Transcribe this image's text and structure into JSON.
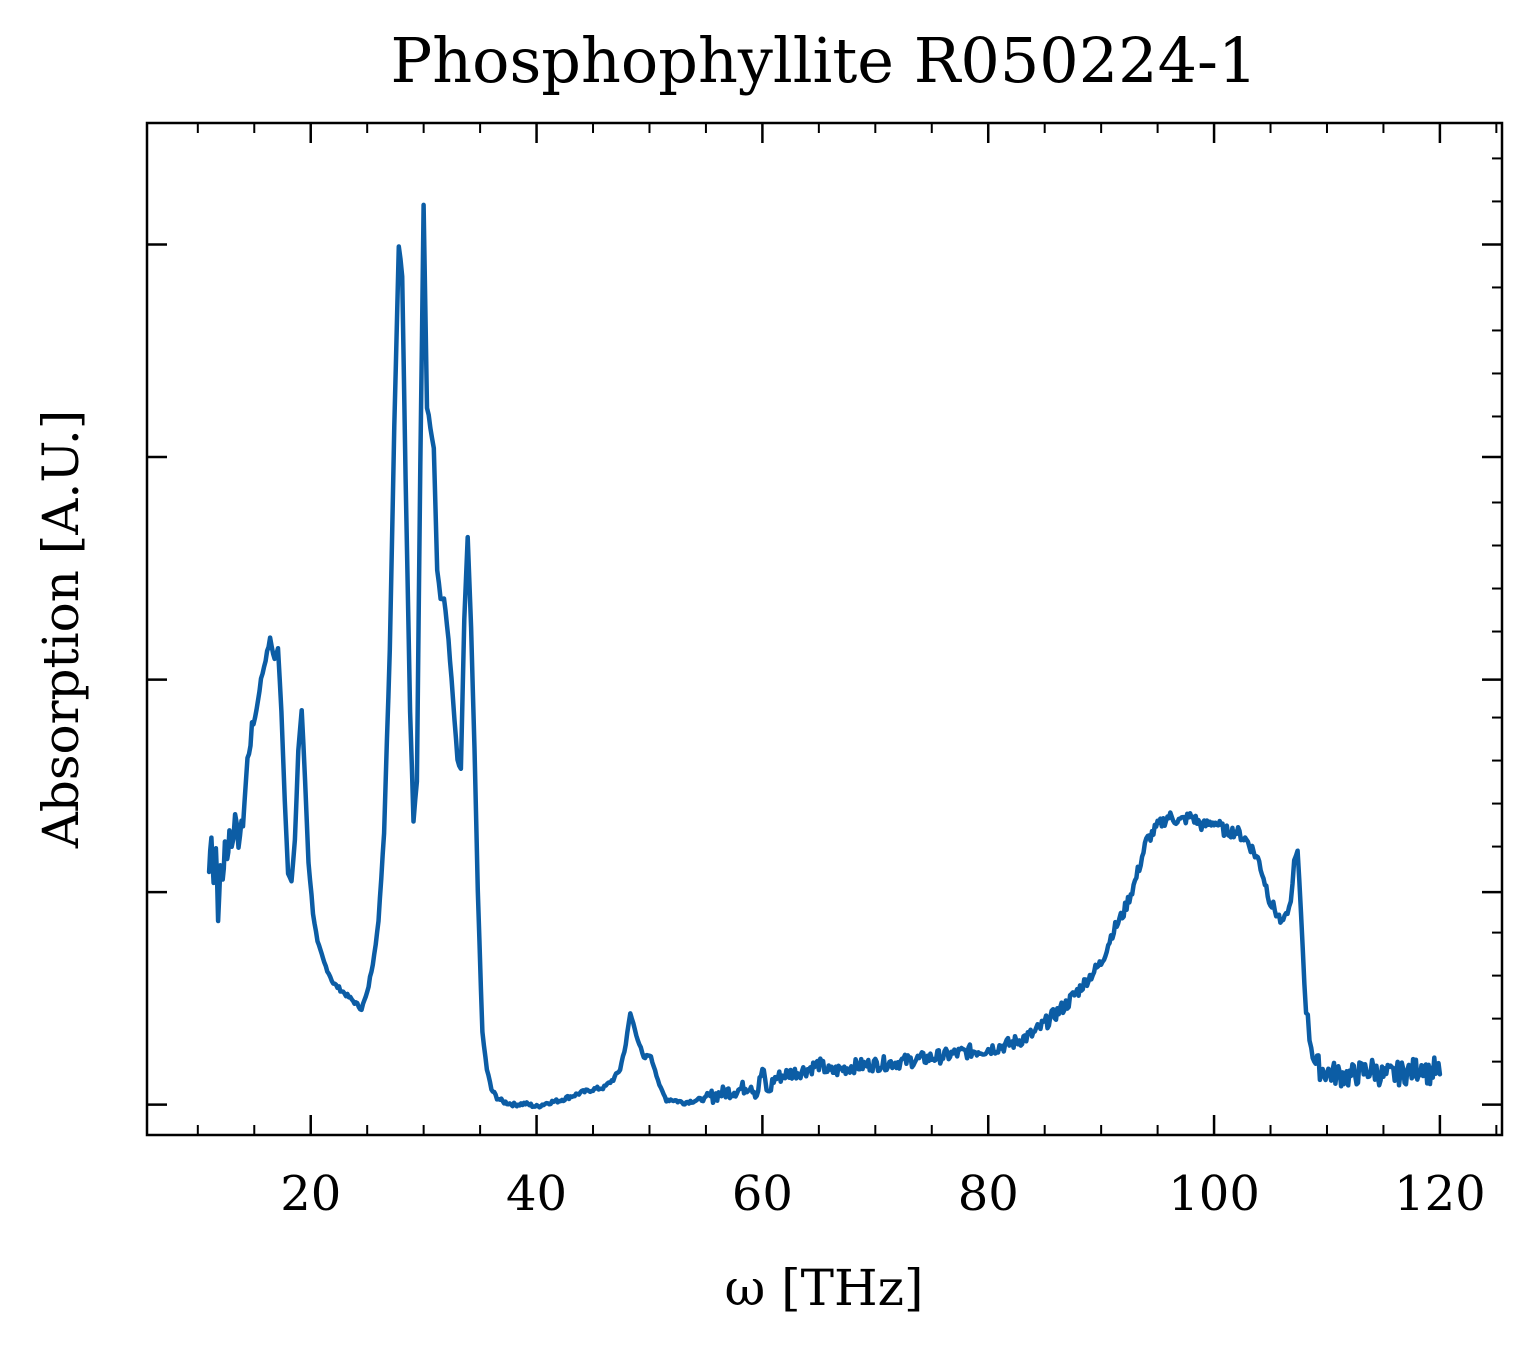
{
  "chart_data": {
    "type": "line",
    "title": "Phosphophyllite R050224-1",
    "xlabel": "ω [THz]",
    "ylabel": "Absorption [A.U.]",
    "xlim": [
      5.5,
      125.5
    ],
    "ylim": [
      0,
      1
    ],
    "xticks": [
      20,
      40,
      60,
      80,
      100,
      120
    ],
    "xtick_labels": [
      "20",
      "40",
      "60",
      "80",
      "100",
      "120"
    ],
    "yticks_shown_unlabeled": [
      0.03,
      0.24,
      0.45,
      0.67,
      0.88
    ],
    "grid": false,
    "line_color": "#0c5da5",
    "series": [
      {
        "x": [
          11.0,
          11.2,
          11.4,
          11.6,
          11.8,
          12.0,
          12.2,
          12.4,
          12.6,
          12.8,
          13.0,
          13.3,
          13.6,
          14.0,
          14.4,
          14.8,
          15.2,
          15.6,
          16.0,
          16.4,
          16.8,
          17.1,
          17.4,
          17.7,
          18.0,
          18.3,
          18.6,
          18.9,
          19.2,
          19.5,
          19.8,
          20.2,
          20.6,
          21.2,
          22.0,
          23.0,
          24.0,
          24.5,
          25.0,
          25.5,
          26.0,
          26.5,
          27.0,
          27.4,
          27.8,
          28.1,
          28.4,
          28.8,
          29.1,
          29.4,
          29.7,
          30.0,
          30.3,
          30.6,
          30.9,
          31.2,
          31.5,
          31.8,
          32.2,
          32.6,
          33.0,
          33.3,
          33.6,
          33.9,
          34.2,
          34.5,
          34.8,
          35.2,
          35.6,
          36.0,
          36.5,
          37.0,
          38.0,
          39.0,
          40.0,
          41.0,
          42.0,
          43.0,
          44.0,
          45.0,
          46.0,
          46.8,
          47.4,
          47.9,
          48.3,
          48.7,
          49.1,
          49.5,
          50.0,
          50.5,
          51.0,
          51.5,
          52.0,
          53.0,
          54.0,
          55.0,
          56.0,
          57.0,
          58.0,
          59.0,
          59.5,
          60.0,
          60.5,
          61.0,
          62.0,
          63.0,
          64.0,
          65.0,
          66.0,
          67.0,
          68.0,
          70.0,
          72.0,
          74.0,
          76.0,
          78.0,
          80.0,
          82.0,
          84.0,
          85.5,
          87.0,
          88.5,
          90.0,
          91.0,
          92.0,
          93.0,
          94.0,
          95.0,
          96.0,
          97.0,
          98.0,
          99.0,
          100.0,
          101.0,
          102.0,
          103.0,
          104.0,
          105.0,
          105.5,
          106.0,
          106.5,
          106.8,
          107.1,
          107.4,
          107.7,
          108.0,
          108.3,
          108.6,
          109.0,
          109.5,
          110.0,
          111.0,
          112.0,
          113.0,
          114.0,
          115.0,
          116.0,
          117.0,
          118.0,
          118.5,
          119.0,
          119.5,
          120.0
        ],
        "y": [
          0.26,
          0.3,
          0.25,
          0.29,
          0.21,
          0.27,
          0.25,
          0.29,
          0.27,
          0.3,
          0.29,
          0.31,
          0.29,
          0.31,
          0.37,
          0.4,
          0.42,
          0.45,
          0.47,
          0.49,
          0.47,
          0.48,
          0.42,
          0.33,
          0.26,
          0.25,
          0.29,
          0.38,
          0.42,
          0.35,
          0.27,
          0.22,
          0.19,
          0.17,
          0.15,
          0.14,
          0.13,
          0.125,
          0.14,
          0.17,
          0.21,
          0.3,
          0.48,
          0.7,
          0.88,
          0.85,
          0.65,
          0.42,
          0.31,
          0.35,
          0.66,
          0.92,
          0.72,
          0.7,
          0.68,
          0.56,
          0.53,
          0.53,
          0.49,
          0.43,
          0.37,
          0.36,
          0.51,
          0.59,
          0.5,
          0.38,
          0.24,
          0.1,
          0.065,
          0.045,
          0.037,
          0.033,
          0.03,
          0.031,
          0.028,
          0.032,
          0.034,
          0.038,
          0.042,
          0.045,
          0.047,
          0.055,
          0.065,
          0.09,
          0.12,
          0.105,
          0.09,
          0.075,
          0.08,
          0.065,
          0.045,
          0.035,
          0.035,
          0.032,
          0.034,
          0.036,
          0.04,
          0.043,
          0.045,
          0.05,
          0.04,
          0.065,
          0.04,
          0.055,
          0.06,
          0.062,
          0.065,
          0.07,
          0.062,
          0.065,
          0.068,
          0.07,
          0.072,
          0.075,
          0.078,
          0.082,
          0.085,
          0.09,
          0.1,
          0.115,
          0.13,
          0.15,
          0.17,
          0.2,
          0.22,
          0.25,
          0.29,
          0.305,
          0.315,
          0.31,
          0.315,
          0.305,
          0.31,
          0.3,
          0.3,
          0.29,
          0.27,
          0.23,
          0.22,
          0.21,
          0.22,
          0.23,
          0.27,
          0.28,
          0.22,
          0.15,
          0.11,
          0.09,
          0.07,
          0.065,
          0.062,
          0.06,
          0.058,
          0.062,
          0.065,
          0.058,
          0.06,
          0.062,
          0.065,
          0.07,
          0.06,
          0.065,
          0.06
        ]
      }
    ]
  }
}
